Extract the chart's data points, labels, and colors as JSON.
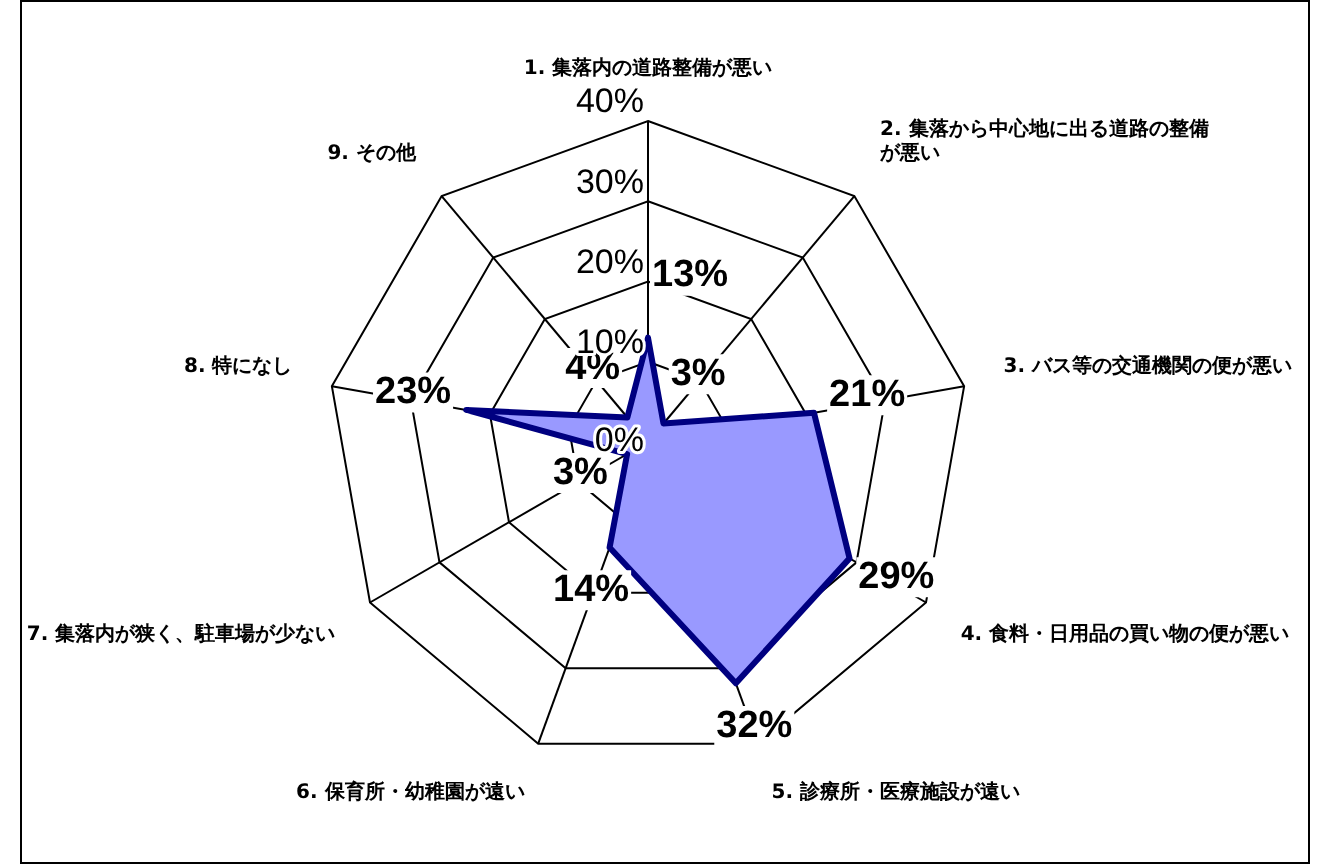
{
  "chart_data": {
    "type": "radar",
    "categories": [
      "1. 集落内の道路整備が悪い",
      "2. 集落から中心地に出る道路の整備が悪い",
      "3. バス等の交通機関の便が悪い",
      "4. 食料・日用品の買い物の便が悪い",
      "5. 診療所・医療施設が遠い",
      "6. 保育所・幼稚園が遠い",
      "7. 集落内が狭く、駐車場が少ない",
      "8. 特になし",
      "9. その他"
    ],
    "series": [
      {
        "color": "#9999ff",
        "values": [
          13,
          3,
          21,
          29,
          32,
          14,
          3,
          23,
          4
        ],
        "value_labels": [
          "13%",
          "3%",
          "21%",
          "29%",
          "32%",
          "14%",
          "3%",
          "23%",
          "4%"
        ]
      }
    ],
    "ylim": [
      0,
      40
    ],
    "yticks": [
      {
        "value": 0,
        "label": "0%"
      },
      {
        "value": 10,
        "label": "10%"
      },
      {
        "value": 20,
        "label": "20%"
      },
      {
        "value": 30,
        "label": "30%"
      },
      {
        "value": 40,
        "label": "40%"
      }
    ],
    "grid": true,
    "legend": false,
    "marker": "none"
  }
}
